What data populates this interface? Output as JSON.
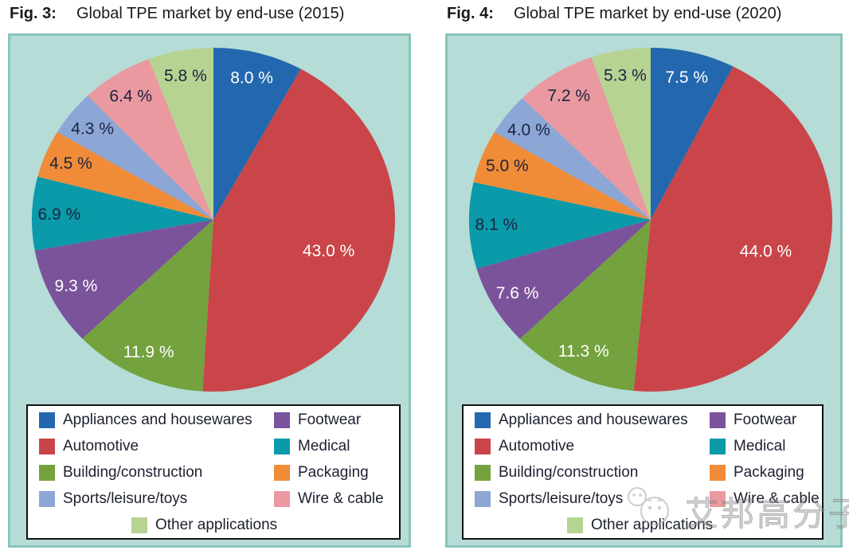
{
  "figures": [
    {
      "title_label": "Fig. 3:",
      "title": "Global TPE market by end-use (2015)"
    },
    {
      "title_label": "Fig. 4:",
      "title": "Global TPE market by end-use (2020)"
    }
  ],
  "chart_data": [
    {
      "type": "pie",
      "figure": "Fig. 3",
      "title": "Global TPE market by end-use (2015)",
      "year": "2015",
      "unit": "%",
      "start_angle": "12 o'clock, clockwise",
      "legend_position": "bottom",
      "categories": [
        "Appliances and housewares",
        "Automotive",
        "Building/construction",
        "Footwear",
        "Medical",
        "Packaging",
        "Sports/leisure/toys",
        "Wire & cable",
        "Other applications"
      ],
      "values": [
        8.0,
        43.0,
        11.9,
        9.3,
        6.9,
        4.5,
        4.3,
        6.4,
        5.8
      ],
      "labels": [
        "8.0 %",
        "43.0 %",
        "11.9 %",
        "9.3 %",
        "6.9 %",
        "4.5 %",
        "4.3 %",
        "6.4 %",
        "5.8 %"
      ],
      "colors": [
        "#2368ae",
        "#c94549",
        "#74a23e",
        "#7b539b",
        "#0a9aa9",
        "#f08b38",
        "#8ca6d6",
        "#ea99a0",
        "#b7d392"
      ],
      "label_colors": [
        "#ffffff",
        "#ffffff",
        "#ffffff",
        "#ffffff",
        "#1c2440",
        "#1c2440",
        "#1c2440",
        "#1c2440",
        "#1c2440"
      ],
      "legend_columns": {
        "left": [
          0,
          1,
          2,
          6
        ],
        "right": [
          3,
          4,
          5,
          7
        ],
        "center": [
          8
        ]
      }
    },
    {
      "type": "pie",
      "figure": "Fig. 4",
      "title": "Global TPE market by end-use (2020)",
      "year": "2020",
      "unit": "%",
      "start_angle": "12 o'clock, clockwise",
      "legend_position": "bottom",
      "categories": [
        "Appliances and housewares",
        "Automotive",
        "Building/construction",
        "Footwear",
        "Medical",
        "Packaging",
        "Sports/leisure/toys",
        "Wire & cable",
        "Other applications"
      ],
      "values": [
        7.5,
        44.0,
        11.3,
        7.6,
        8.1,
        5.0,
        4.0,
        7.2,
        5.3
      ],
      "labels": [
        "7.5 %",
        "44.0 %",
        "11.3 %",
        "7.6 %",
        "8.1 %",
        "5.0 %",
        "4.0 %",
        "7.2 %",
        "5.3 %"
      ],
      "colors": [
        "#2368ae",
        "#c94549",
        "#74a23e",
        "#7b539b",
        "#0a9aa9",
        "#f08b38",
        "#8ca6d6",
        "#ea99a0",
        "#b7d392"
      ],
      "label_colors": [
        "#ffffff",
        "#ffffff",
        "#ffffff",
        "#ffffff",
        "#1c2440",
        "#1c2440",
        "#1c2440",
        "#1c2440",
        "#1c2440"
      ],
      "legend_columns": {
        "left": [
          0,
          1,
          2,
          6
        ],
        "right": [
          3,
          4,
          5,
          7
        ],
        "center": [
          8
        ]
      }
    }
  ],
  "watermark": {
    "text": "艾邦高分子",
    "icon": "double-smiley-face-icon"
  },
  "styles": {
    "panel_bg": "#b5dcd7",
    "panel_border": "#8ac3bd",
    "legend_bg": "#ffffff",
    "legend_border": "#111111",
    "text_dark": "#1d2130",
    "title_color": "#1a1a1a"
  }
}
